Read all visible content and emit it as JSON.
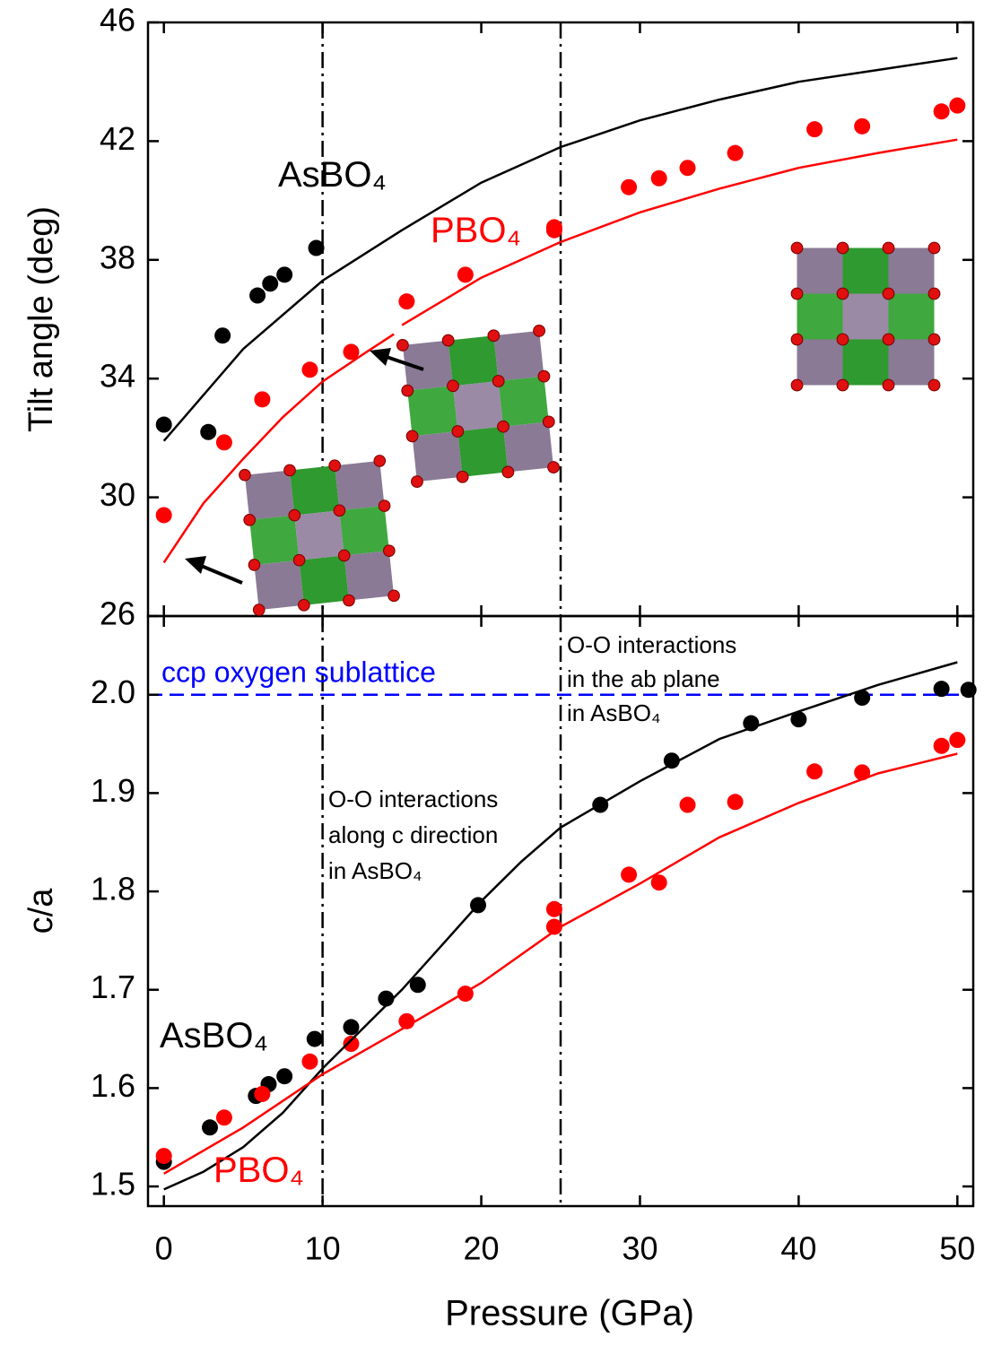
{
  "chart_data": [
    {
      "type": "scatter",
      "ylabel": "Tilt angle (deg)",
      "xlim": [
        -1,
        51
      ],
      "xticks": [
        0,
        10,
        20,
        30,
        40,
        50
      ],
      "ylim": [
        26,
        46
      ],
      "yticks": [
        26,
        30,
        34,
        38,
        42,
        46
      ],
      "vlines": [
        10,
        25
      ],
      "series": [
        {
          "mode": "markers",
          "color": "#000000",
          "x": [
            0,
            2.8,
            3.7,
            5.9,
            6.7,
            7.6,
            9.6
          ],
          "values": [
            32.45,
            32.2,
            35.45,
            36.8,
            37.2,
            37.5,
            38.4
          ]
        },
        {
          "mode": "markers",
          "color": "#ff0000",
          "x": [
            0,
            3.8,
            6.2,
            9.2,
            11.8,
            15.3,
            19,
            24.6,
            24.6,
            29.3,
            31.2,
            33,
            36,
            41,
            44,
            49,
            50
          ],
          "values": [
            29.4,
            31.85,
            33.3,
            34.3,
            34.9,
            36.6,
            37.5,
            39.0,
            39.1,
            40.45,
            40.75,
            41.1,
            41.6,
            42.4,
            42.5,
            43.0,
            43.2
          ]
        },
        {
          "mode": "line",
          "color": "#000000",
          "x": [
            0,
            5,
            10,
            15,
            20,
            25,
            30,
            35,
            40,
            45,
            50
          ],
          "values": [
            31.9,
            35.0,
            37.3,
            39.0,
            40.6,
            41.8,
            42.7,
            43.4,
            44.0,
            44.4,
            44.8
          ]
        },
        {
          "mode": "line",
          "color": "#ff0000",
          "x": [
            0,
            2.5,
            5,
            7.5,
            10,
            12.5,
            14.5,
            14.8,
            15,
            20,
            25,
            30,
            35,
            40,
            45,
            50
          ],
          "values": [
            27.8,
            29.8,
            31.3,
            32.7,
            33.9,
            34.8,
            35.5,
            null,
            35.8,
            37.4,
            38.6,
            39.6,
            40.4,
            41.1,
            41.6,
            42.05
          ]
        }
      ],
      "annotations": [
        {
          "text": [
            "AsBO₄"
          ],
          "color": "#000000"
        },
        {
          "text": [
            "PBO₄"
          ],
          "color": "#ff0000"
        }
      ]
    },
    {
      "type": "scatter",
      "xlabel": "Pressure (GPa)",
      "ylabel": "c/a",
      "xlim": [
        -1,
        51
      ],
      "xticks": [
        0,
        10,
        20,
        30,
        40,
        50
      ],
      "ylim": [
        1.48,
        2.08
      ],
      "yticks": [
        1.5,
        1.6,
        1.7,
        1.8,
        1.9,
        {
          "value": 2,
          "label": "2.0"
        }
      ],
      "vlines": [
        10,
        25
      ],
      "hlines": [
        {
          "value": 2,
          "label": "ccp oxygen sublattice",
          "color": "#0000ff"
        }
      ],
      "series": [
        {
          "mode": "markers",
          "color": "#000000",
          "x": [
            0,
            2.9,
            5.8,
            6.6,
            7.6,
            9.5,
            11.8,
            14,
            16,
            19.8,
            27.5,
            32,
            37,
            40,
            44,
            49,
            50.7
          ],
          "values": [
            1.525,
            1.56,
            1.592,
            1.604,
            1.612,
            1.65,
            1.662,
            1.691,
            1.705,
            1.786,
            1.888,
            1.933,
            1.971,
            1.975,
            1.997,
            2.006,
            2.005
          ]
        },
        {
          "mode": "markers",
          "color": "#ff0000",
          "x": [
            0,
            3.8,
            6.2,
            9.2,
            11.8,
            15.3,
            19,
            24.6,
            24.6,
            29.3,
            31.2,
            33,
            36,
            41,
            44,
            49,
            50
          ],
          "values": [
            1.531,
            1.57,
            1.594,
            1.627,
            1.645,
            1.668,
            1.696,
            1.782,
            1.764,
            1.817,
            1.809,
            1.888,
            1.891,
            1.922,
            1.921,
            1.948,
            1.954
          ]
        },
        {
          "mode": "line",
          "color": "#000000",
          "x": [
            0,
            2.5,
            5,
            7.5,
            10,
            12.5,
            15,
            17.5,
            20,
            22.5,
            25,
            30,
            35,
            40,
            45,
            50
          ],
          "values": [
            1.497,
            1.515,
            1.54,
            1.575,
            1.62,
            1.66,
            1.7,
            1.745,
            1.79,
            1.83,
            1.865,
            1.912,
            1.955,
            1.983,
            2.01,
            2.033
          ]
        },
        {
          "mode": "line",
          "color": "#ff0000",
          "x": [
            0,
            5,
            10,
            15,
            20,
            25,
            30,
            35,
            40,
            45,
            50
          ],
          "values": [
            1.513,
            1.56,
            1.614,
            1.66,
            1.707,
            1.764,
            1.808,
            1.855,
            1.89,
            1.92,
            1.94
          ]
        }
      ],
      "annotations": [
        {
          "text": [
            "O-O interactions",
            "in the ab plane",
            "in AsBO₄"
          ],
          "color": "#000000"
        },
        {
          "text": [
            "O-O interactions",
            "along c direction",
            "in AsBO₄"
          ],
          "color": "#000000"
        },
        {
          "text": [
            "AsBO₄"
          ],
          "color": "#000000"
        },
        {
          "text": [
            "PBO₄"
          ],
          "color": "#ff0000"
        }
      ]
    }
  ]
}
